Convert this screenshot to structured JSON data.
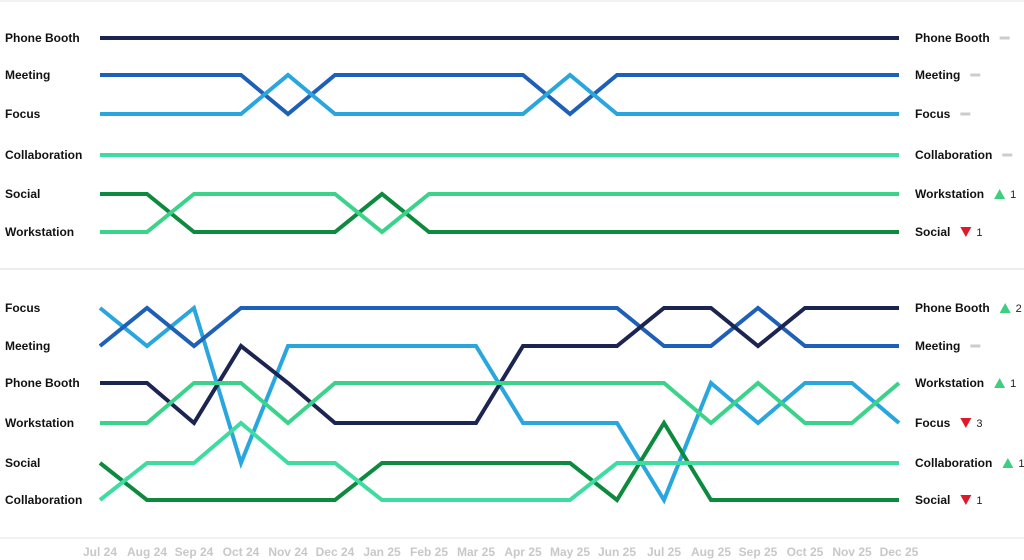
{
  "colors": {
    "Phone Booth": "#1c2452",
    "Meeting": "#1e5fb8",
    "Focus": "#2aa6df",
    "Collaboration": "#3fdca2",
    "Social": "#0d8a3e",
    "Workstation": "#3bd38a",
    "up": "#3ecf7e",
    "down": "#e0182a",
    "same": "#cccccc",
    "divider": "#d9d9d9",
    "tick": "#c8c8c8"
  },
  "chart_data": [
    {
      "type": "bump",
      "title": "",
      "x": [
        "Jul 24",
        "Aug 24",
        "Sep 24",
        "Oct 24",
        "Nov 24",
        "Dec 24",
        "Jan 25",
        "Feb 25",
        "Mar 25",
        "Apr 25",
        "May 25",
        "Jun 25",
        "Jul 25",
        "Aug 25",
        "Sep 25",
        "Oct 25",
        "Nov 25",
        "Dec 25"
      ],
      "series": [
        {
          "name": "Phone Booth",
          "ranks": [
            1,
            1,
            1,
            1,
            1,
            1,
            1,
            1,
            1,
            1,
            1,
            1,
            1,
            1,
            1,
            1,
            1,
            1
          ]
        },
        {
          "name": "Meeting",
          "ranks": [
            2,
            2,
            2,
            2,
            3,
            2,
            2,
            2,
            2,
            2,
            3,
            2,
            2,
            2,
            2,
            2,
            2,
            2
          ]
        },
        {
          "name": "Focus",
          "ranks": [
            3,
            3,
            3,
            3,
            2,
            3,
            3,
            3,
            3,
            3,
            2,
            3,
            3,
            3,
            3,
            3,
            3,
            3
          ]
        },
        {
          "name": "Collaboration",
          "ranks": [
            4,
            4,
            4,
            4,
            4,
            4,
            4,
            4,
            4,
            4,
            4,
            4,
            4,
            4,
            4,
            4,
            4,
            4
          ]
        },
        {
          "name": "Social",
          "ranks": [
            5,
            5,
            6,
            6,
            6,
            6,
            5,
            6,
            6,
            6,
            6,
            6,
            6,
            6,
            6,
            6,
            6,
            6
          ]
        },
        {
          "name": "Workstation",
          "ranks": [
            6,
            6,
            5,
            5,
            5,
            5,
            6,
            5,
            5,
            5,
            5,
            5,
            5,
            5,
            5,
            5,
            5,
            5
          ]
        }
      ],
      "end_labels": [
        {
          "name": "Phone Booth",
          "dir": "same",
          "delta": ""
        },
        {
          "name": "Meeting",
          "dir": "same",
          "delta": ""
        },
        {
          "name": "Focus",
          "dir": "same",
          "delta": ""
        },
        {
          "name": "Collaboration",
          "dir": "same",
          "delta": ""
        },
        {
          "name": "Workstation",
          "dir": "up",
          "delta": "1"
        },
        {
          "name": "Social",
          "dir": "down",
          "delta": "1"
        }
      ]
    },
    {
      "type": "bump",
      "title": "",
      "x": [
        "Jul 24",
        "Aug 24",
        "Sep 24",
        "Oct 24",
        "Nov 24",
        "Dec 24",
        "Jan 25",
        "Feb 25",
        "Mar 25",
        "Apr 25",
        "May 25",
        "Jun 25",
        "Jul 25",
        "Aug 25",
        "Sep 25",
        "Oct 25",
        "Nov 25",
        "Dec 25"
      ],
      "series": [
        {
          "name": "Focus",
          "ranks": [
            1,
            2,
            1,
            5,
            2,
            2,
            2,
            2,
            2,
            4,
            4,
            4,
            6,
            3,
            4,
            3,
            3,
            4
          ]
        },
        {
          "name": "Meeting",
          "ranks": [
            2,
            1,
            2,
            1,
            1,
            1,
            1,
            1,
            1,
            1,
            1,
            1,
            2,
            2,
            1,
            2,
            2,
            2
          ]
        },
        {
          "name": "Phone Booth",
          "ranks": [
            3,
            3,
            4,
            2,
            3,
            4,
            4,
            4,
            4,
            2,
            2,
            2,
            1,
            1,
            2,
            1,
            1,
            1
          ]
        },
        {
          "name": "Workstation",
          "ranks": [
            4,
            4,
            3,
            3,
            4,
            3,
            3,
            3,
            3,
            3,
            3,
            3,
            3,
            4,
            3,
            4,
            4,
            3
          ]
        },
        {
          "name": "Social",
          "ranks": [
            5,
            6,
            6,
            6,
            6,
            6,
            5,
            5,
            5,
            5,
            5,
            6,
            4,
            6,
            6,
            6,
            6,
            6
          ]
        },
        {
          "name": "Collaboration",
          "ranks": [
            6,
            5,
            5,
            4,
            5,
            5,
            6,
            6,
            6,
            6,
            6,
            5,
            5,
            5,
            5,
            5,
            5,
            5
          ]
        }
      ],
      "end_labels": [
        {
          "name": "Phone Booth",
          "dir": "up",
          "delta": "2"
        },
        {
          "name": "Meeting",
          "dir": "same",
          "delta": ""
        },
        {
          "name": "Workstation",
          "dir": "up",
          "delta": "1"
        },
        {
          "name": "Focus",
          "dir": "down",
          "delta": "3"
        },
        {
          "name": "Collaboration",
          "dir": "up",
          "delta": "1"
        },
        {
          "name": "Social",
          "dir": "down",
          "delta": "1"
        }
      ]
    }
  ]
}
